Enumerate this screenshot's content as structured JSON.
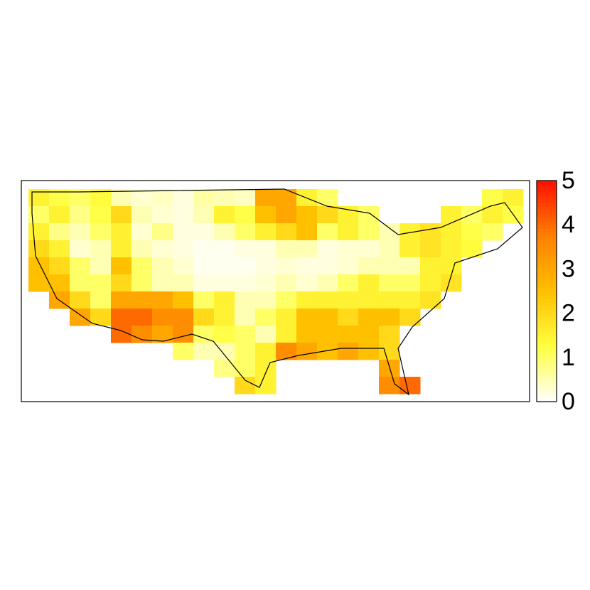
{
  "chart_data": {
    "type": "heatmap",
    "colorscale": [
      "#ffffff",
      "#ffff40",
      "#ffc000",
      "#ff8000",
      "#ff1000"
    ],
    "zlim": [
      0,
      5
    ],
    "zticks": [
      0,
      1,
      2,
      3,
      4,
      5
    ],
    "values": [
      [
        1.5,
        1.2,
        1,
        1.3,
        0.5,
        0.3,
        0.4,
        0.2,
        0.6,
        0.5,
        0.4,
        3,
        3,
        1.5,
        1,
        null,
        null,
        null,
        null,
        null,
        null,
        null,
        1.2,
        1.5
      ],
      [
        1,
        1.5,
        0.8,
        1.2,
        2,
        0.5,
        0.3,
        0.2,
        0.5,
        1.5,
        1.2,
        2.5,
        3,
        2.5,
        2,
        1.5,
        1,
        null,
        null,
        null,
        1.5,
        1,
        1.5,
        1.2
      ],
      [
        1.5,
        0.8,
        0.5,
        1,
        1.5,
        0.3,
        0.8,
        0.2,
        0.2,
        0.5,
        1,
        1.5,
        2,
        2.5,
        1,
        1.5,
        1,
        0.5,
        1.5,
        1.8,
        1.5,
        1.2,
        1,
        null
      ],
      [
        2,
        1.5,
        0.3,
        0.5,
        1.5,
        0.5,
        0.3,
        0.2,
        0.1,
        0.1,
        0.2,
        0.2,
        0.5,
        0.5,
        0.2,
        0.3,
        0.3,
        0.5,
        1.5,
        1.8,
        1.5,
        1.3,
        null,
        null
      ],
      [
        2.5,
        2,
        1,
        0.5,
        2.5,
        1,
        0.5,
        0.3,
        0.1,
        0.1,
        0.1,
        0.2,
        0.3,
        0.2,
        0.2,
        0.3,
        0.5,
        0.5,
        0.5,
        1.5,
        1.5,
        null,
        null,
        null
      ],
      [
        2.5,
        2.5,
        1,
        1,
        2,
        1,
        0.5,
        0.5,
        0.2,
        0.2,
        0.2,
        0.3,
        0.5,
        0.3,
        0.5,
        1,
        1.5,
        1,
        1,
        1.5,
        1.8,
        null,
        null,
        null
      ],
      [
        null,
        3,
        2,
        1,
        3,
        3,
        3,
        2.5,
        1,
        1.5,
        0.5,
        0.5,
        1,
        1.5,
        1.5,
        1.5,
        1.5,
        1.5,
        1.5,
        1.8,
        null,
        null,
        null,
        null
      ],
      [
        null,
        null,
        3,
        2,
        4,
        4,
        3.5,
        3.5,
        2,
        1.5,
        0.5,
        1,
        1.5,
        2.5,
        2.5,
        2,
        2.5,
        2.5,
        2,
        null,
        null,
        null,
        null,
        null
      ],
      [
        null,
        null,
        null,
        null,
        4,
        3.5,
        3,
        3.5,
        1,
        1.2,
        1,
        0.5,
        1.5,
        2.5,
        2.5,
        2.5,
        2.5,
        2,
        null,
        null,
        null,
        null,
        null,
        null
      ],
      [
        null,
        null,
        null,
        null,
        null,
        null,
        null,
        1,
        0.5,
        0.5,
        1,
        1.5,
        3.5,
        3,
        2.5,
        3,
        2.5,
        2,
        null,
        null,
        null,
        null,
        null,
        null
      ],
      [
        null,
        null,
        null,
        null,
        null,
        null,
        null,
        null,
        null,
        0.8,
        1,
        1.5,
        null,
        null,
        null,
        null,
        null,
        3,
        null,
        null,
        null,
        null,
        null,
        null
      ],
      [
        null,
        null,
        null,
        null,
        null,
        null,
        null,
        null,
        null,
        null,
        2,
        1.5,
        null,
        null,
        null,
        null,
        null,
        3.5,
        4,
        null,
        null,
        null,
        null,
        null
      ]
    ]
  }
}
